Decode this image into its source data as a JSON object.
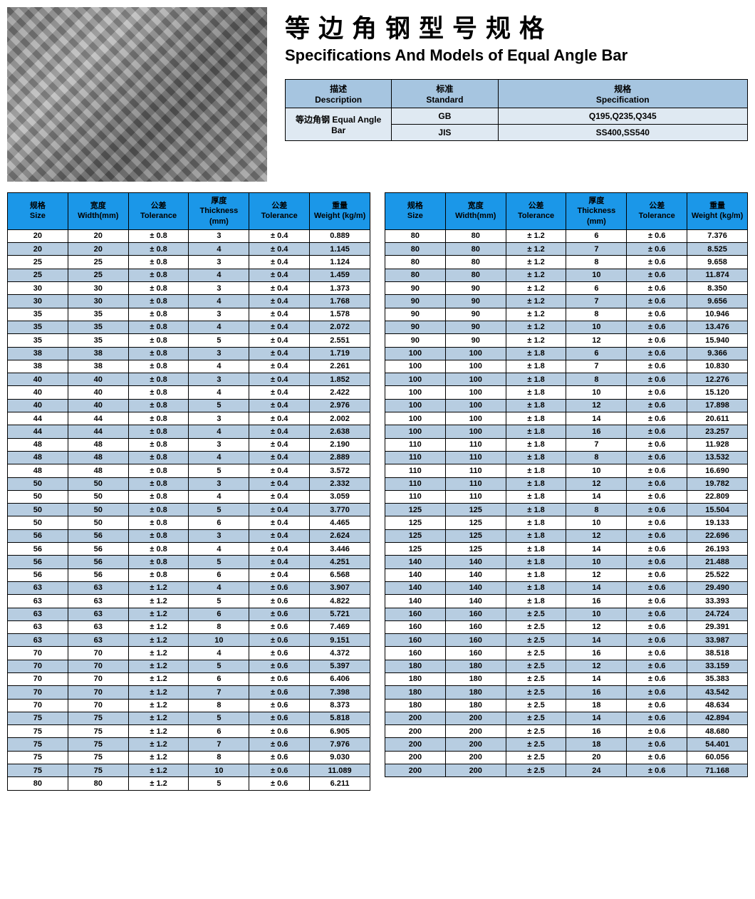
{
  "title": {
    "cn": "等边角钢型号规格",
    "en": "Specifications And Models of Equal Angle Bar"
  },
  "colors": {
    "header_blue": "#1b97e8",
    "spec_header_bg": "#a6c5e0",
    "spec_body_bg": "#dfe9f2",
    "row_stripe": "#b7cde1",
    "border": "#000000"
  },
  "spec": {
    "headers": [
      {
        "cn": "描述",
        "en": "Description"
      },
      {
        "cn": "标准",
        "en": "Standard"
      },
      {
        "cn": "规格",
        "en": "Specification"
      }
    ],
    "desc": {
      "cn": "等边角钢",
      "en": "Equal Angle Bar"
    },
    "rows": [
      {
        "std": "GB",
        "spec": "Q195,Q235,Q345"
      },
      {
        "std": "JIS",
        "spec": "SS400,SS540"
      }
    ]
  },
  "data_headers": [
    {
      "cn": "规格",
      "en": "Size"
    },
    {
      "cn": "宽度",
      "en": "Width(mm)"
    },
    {
      "cn": "公差",
      "en": "Tolerance"
    },
    {
      "cn": "厚度",
      "en": "Thickness (mm)"
    },
    {
      "cn": "公差",
      "en": "Tolerance"
    },
    {
      "cn": "重量",
      "en": "Weight (kg/m)"
    }
  ],
  "left": [
    [
      "20",
      "20",
      "± 0.8",
      "3",
      "± 0.4",
      "0.889"
    ],
    [
      "20",
      "20",
      "± 0.8",
      "4",
      "± 0.4",
      "1.145"
    ],
    [
      "25",
      "25",
      "± 0.8",
      "3",
      "± 0.4",
      "1.124"
    ],
    [
      "25",
      "25",
      "± 0.8",
      "4",
      "± 0.4",
      "1.459"
    ],
    [
      "30",
      "30",
      "± 0.8",
      "3",
      "± 0.4",
      "1.373"
    ],
    [
      "30",
      "30",
      "± 0.8",
      "4",
      "± 0.4",
      "1.768"
    ],
    [
      "35",
      "35",
      "± 0.8",
      "3",
      "± 0.4",
      "1.578"
    ],
    [
      "35",
      "35",
      "± 0.8",
      "4",
      "± 0.4",
      "2.072"
    ],
    [
      "35",
      "35",
      "± 0.8",
      "5",
      "± 0.4",
      "2.551"
    ],
    [
      "38",
      "38",
      "± 0.8",
      "3",
      "± 0.4",
      "1.719"
    ],
    [
      "38",
      "38",
      "± 0.8",
      "4",
      "± 0.4",
      "2.261"
    ],
    [
      "40",
      "40",
      "± 0.8",
      "3",
      "± 0.4",
      "1.852"
    ],
    [
      "40",
      "40",
      "± 0.8",
      "4",
      "± 0.4",
      "2.422"
    ],
    [
      "40",
      "40",
      "± 0.8",
      "5",
      "± 0.4",
      "2.976"
    ],
    [
      "44",
      "44",
      "± 0.8",
      "3",
      "± 0.4",
      "2.002"
    ],
    [
      "44",
      "44",
      "± 0.8",
      "4",
      "± 0.4",
      "2.638"
    ],
    [
      "48",
      "48",
      "± 0.8",
      "3",
      "± 0.4",
      "2.190"
    ],
    [
      "48",
      "48",
      "± 0.8",
      "4",
      "± 0.4",
      "2.889"
    ],
    [
      "48",
      "48",
      "± 0.8",
      "5",
      "± 0.4",
      "3.572"
    ],
    [
      "50",
      "50",
      "± 0.8",
      "3",
      "± 0.4",
      "2.332"
    ],
    [
      "50",
      "50",
      "± 0.8",
      "4",
      "± 0.4",
      "3.059"
    ],
    [
      "50",
      "50",
      "± 0.8",
      "5",
      "± 0.4",
      "3.770"
    ],
    [
      "50",
      "50",
      "± 0.8",
      "6",
      "± 0.4",
      "4.465"
    ],
    [
      "56",
      "56",
      "± 0.8",
      "3",
      "± 0.4",
      "2.624"
    ],
    [
      "56",
      "56",
      "± 0.8",
      "4",
      "± 0.4",
      "3.446"
    ],
    [
      "56",
      "56",
      "± 0.8",
      "5",
      "± 0.4",
      "4.251"
    ],
    [
      "56",
      "56",
      "± 0.8",
      "6",
      "± 0.4",
      "6.568"
    ],
    [
      "63",
      "63",
      "± 1.2",
      "4",
      "± 0.6",
      "3.907"
    ],
    [
      "63",
      "63",
      "± 1.2",
      "5",
      "± 0.6",
      "4.822"
    ],
    [
      "63",
      "63",
      "± 1.2",
      "6",
      "± 0.6",
      "5.721"
    ],
    [
      "63",
      "63",
      "± 1.2",
      "8",
      "± 0.6",
      "7.469"
    ],
    [
      "63",
      "63",
      "± 1.2",
      "10",
      "± 0.6",
      "9.151"
    ],
    [
      "70",
      "70",
      "± 1.2",
      "4",
      "± 0.6",
      "4.372"
    ],
    [
      "70",
      "70",
      "± 1.2",
      "5",
      "± 0.6",
      "5.397"
    ],
    [
      "70",
      "70",
      "± 1.2",
      "6",
      "± 0.6",
      "6.406"
    ],
    [
      "70",
      "70",
      "± 1.2",
      "7",
      "± 0.6",
      "7.398"
    ],
    [
      "70",
      "70",
      "± 1.2",
      "8",
      "± 0.6",
      "8.373"
    ],
    [
      "75",
      "75",
      "± 1.2",
      "5",
      "± 0.6",
      "5.818"
    ],
    [
      "75",
      "75",
      "± 1.2",
      "6",
      "± 0.6",
      "6.905"
    ],
    [
      "75",
      "75",
      "± 1.2",
      "7",
      "± 0.6",
      "7.976"
    ],
    [
      "75",
      "75",
      "± 1.2",
      "8",
      "± 0.6",
      "9.030"
    ],
    [
      "75",
      "75",
      "± 1.2",
      "10",
      "± 0.6",
      "11.089"
    ],
    [
      "80",
      "80",
      "± 1.2",
      "5",
      "± 0.6",
      "6.211"
    ]
  ],
  "right": [
    [
      "80",
      "80",
      "± 1.2",
      "6",
      "± 0.6",
      "7.376"
    ],
    [
      "80",
      "80",
      "± 1.2",
      "7",
      "± 0.6",
      "8.525"
    ],
    [
      "80",
      "80",
      "± 1.2",
      "8",
      "± 0.6",
      "9.658"
    ],
    [
      "80",
      "80",
      "± 1.2",
      "10",
      "± 0.6",
      "11.874"
    ],
    [
      "90",
      "90",
      "± 1.2",
      "6",
      "± 0.6",
      "8.350"
    ],
    [
      "90",
      "90",
      "± 1.2",
      "7",
      "± 0.6",
      "9.656"
    ],
    [
      "90",
      "90",
      "± 1.2",
      "8",
      "± 0.6",
      "10.946"
    ],
    [
      "90",
      "90",
      "± 1.2",
      "10",
      "± 0.6",
      "13.476"
    ],
    [
      "90",
      "90",
      "± 1.2",
      "12",
      "± 0.6",
      "15.940"
    ],
    [
      "100",
      "100",
      "± 1.8",
      "6",
      "± 0.6",
      "9.366"
    ],
    [
      "100",
      "100",
      "± 1.8",
      "7",
      "± 0.6",
      "10.830"
    ],
    [
      "100",
      "100",
      "± 1.8",
      "8",
      "± 0.6",
      "12.276"
    ],
    [
      "100",
      "100",
      "± 1.8",
      "10",
      "± 0.6",
      "15.120"
    ],
    [
      "100",
      "100",
      "± 1.8",
      "12",
      "± 0.6",
      "17.898"
    ],
    [
      "100",
      "100",
      "± 1.8",
      "14",
      "± 0.6",
      "20.611"
    ],
    [
      "100",
      "100",
      "± 1.8",
      "16",
      "± 0.6",
      "23.257"
    ],
    [
      "110",
      "110",
      "± 1.8",
      "7",
      "± 0.6",
      "11.928"
    ],
    [
      "110",
      "110",
      "± 1.8",
      "8",
      "± 0.6",
      "13.532"
    ],
    [
      "110",
      "110",
      "± 1.8",
      "10",
      "± 0.6",
      "16.690"
    ],
    [
      "110",
      "110",
      "± 1.8",
      "12",
      "± 0.6",
      "19.782"
    ],
    [
      "110",
      "110",
      "± 1.8",
      "14",
      "± 0.6",
      "22.809"
    ],
    [
      "125",
      "125",
      "± 1.8",
      "8",
      "± 0.6",
      "15.504"
    ],
    [
      "125",
      "125",
      "± 1.8",
      "10",
      "± 0.6",
      "19.133"
    ],
    [
      "125",
      "125",
      "± 1.8",
      "12",
      "± 0.6",
      "22.696"
    ],
    [
      "125",
      "125",
      "± 1.8",
      "14",
      "± 0.6",
      "26.193"
    ],
    [
      "140",
      "140",
      "± 1.8",
      "10",
      "± 0.6",
      "21.488"
    ],
    [
      "140",
      "140",
      "± 1.8",
      "12",
      "± 0.6",
      "25.522"
    ],
    [
      "140",
      "140",
      "± 1.8",
      "14",
      "± 0.6",
      "29.490"
    ],
    [
      "140",
      "140",
      "± 1.8",
      "16",
      "± 0.6",
      "33.393"
    ],
    [
      "160",
      "160",
      "± 2.5",
      "10",
      "± 0.6",
      "24.724"
    ],
    [
      "160",
      "160",
      "± 2.5",
      "12",
      "± 0.6",
      "29.391"
    ],
    [
      "160",
      "160",
      "± 2.5",
      "14",
      "± 0.6",
      "33.987"
    ],
    [
      "160",
      "160",
      "± 2.5",
      "16",
      "± 0.6",
      "38.518"
    ],
    [
      "180",
      "180",
      "± 2.5",
      "12",
      "± 0.6",
      "33.159"
    ],
    [
      "180",
      "180",
      "± 2.5",
      "14",
      "± 0.6",
      "35.383"
    ],
    [
      "180",
      "180",
      "± 2.5",
      "16",
      "± 0.6",
      "43.542"
    ],
    [
      "180",
      "180",
      "± 2.5",
      "18",
      "± 0.6",
      "48.634"
    ],
    [
      "200",
      "200",
      "± 2.5",
      "14",
      "± 0.6",
      "42.894"
    ],
    [
      "200",
      "200",
      "± 2.5",
      "16",
      "± 0.6",
      "48.680"
    ],
    [
      "200",
      "200",
      "± 2.5",
      "18",
      "± 0.6",
      "54.401"
    ],
    [
      "200",
      "200",
      "± 2.5",
      "20",
      "± 0.6",
      "60.056"
    ],
    [
      "200",
      "200",
      "± 2.5",
      "24",
      "± 0.6",
      "71.168"
    ]
  ]
}
